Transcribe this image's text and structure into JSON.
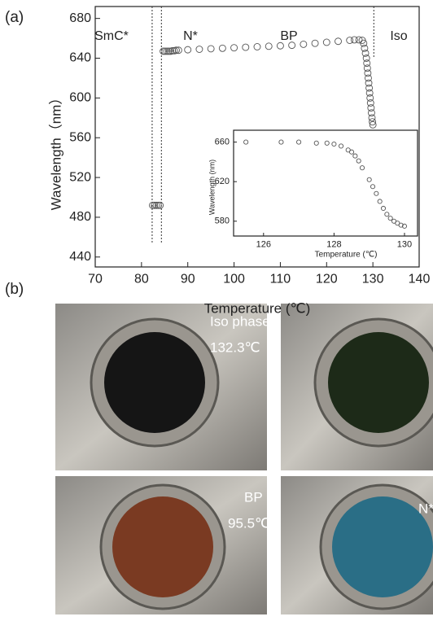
{
  "panel_labels": [
    "(a)",
    "(b)"
  ],
  "chart_data": [
    {
      "type": "scatter",
      "x_label": "Temperature (℃)",
      "y_label": "Wavelength（nm）",
      "x": [
        82.4,
        82.8,
        83.2,
        83.6,
        84.0,
        84.7,
        85.1,
        85.5,
        85.9,
        86.3,
        86.7,
        87.1,
        87.5,
        88,
        90,
        92.5,
        95,
        97.5,
        100,
        102.5,
        105,
        107.5,
        110,
        112.5,
        115,
        117.5,
        120,
        122.5,
        125,
        126,
        127,
        127.7,
        128,
        128.2,
        128.4,
        128.6,
        128.7,
        128.8,
        128.9,
        129,
        129.1,
        129.2,
        129.3,
        129.4,
        129.5,
        129.6,
        129.7,
        129.8,
        129.9,
        130
      ],
      "values": [
        492,
        492,
        492,
        492,
        492,
        647,
        647,
        647,
        647,
        647,
        647.5,
        647.5,
        648,
        648,
        648.5,
        649,
        649.5,
        650,
        650.5,
        651,
        651.5,
        652,
        652.5,
        653,
        654,
        655,
        656,
        657,
        658,
        658.5,
        658.5,
        658,
        655,
        650,
        645,
        640,
        635,
        630,
        625,
        620,
        615,
        610,
        605,
        600,
        595,
        590,
        585,
        580,
        576,
        573
      ],
      "color": "#555555",
      "xlim": [
        70,
        140
      ],
      "xticks": [
        70,
        80,
        90,
        100,
        110,
        120,
        130,
        140
      ],
      "ylim": [
        430,
        692
      ],
      "yticks": [
        440,
        480,
        520,
        560,
        600,
        640,
        680
      ],
      "phase_boundaries": [
        82.3,
        84.3,
        130.2
      ],
      "annotations": [
        "SmC*",
        "N*",
        "BP",
        "Iso"
      ]
    },
    {
      "type": "scatter",
      "x_label": "Temperature (℃)",
      "y_label": "Wavelength (nm)",
      "x": [
        125.5,
        126.5,
        127,
        127.5,
        127.8,
        128,
        128.2,
        128.4,
        128.5,
        128.6,
        128.7,
        128.8,
        129,
        129.1,
        129.2,
        129.3,
        129.4,
        129.5,
        129.6,
        129.7,
        129.8,
        129.9,
        130
      ],
      "values": [
        660,
        660,
        660,
        659,
        659,
        658,
        656,
        652,
        650,
        646,
        641,
        634,
        622,
        615,
        608,
        600,
        593,
        587,
        583,
        580,
        578,
        576,
        575
      ],
      "color": "#555555",
      "xlim": [
        125.15,
        130.37
      ],
      "xticks": [
        126,
        128,
        130
      ],
      "ylim": [
        565,
        672
      ],
      "yticks": [
        580,
        620,
        660
      ]
    }
  ],
  "photos": [
    {
      "caption": "Iso phase",
      "temperature": "132.3℃"
    },
    {
      "caption": "BP",
      "temperature": "95.5℃"
    },
    {
      "caption": "N*"
    }
  ]
}
